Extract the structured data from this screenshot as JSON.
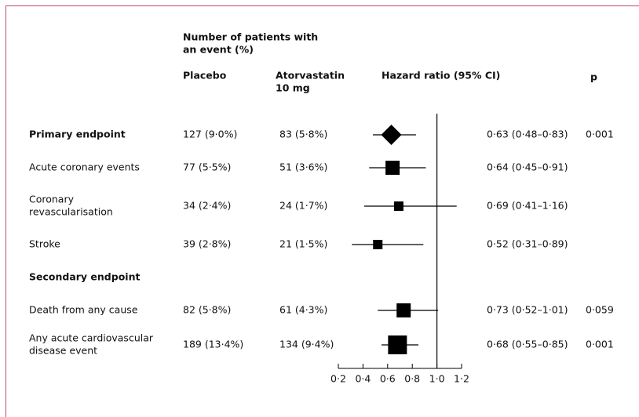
{
  "chart_data": {
    "type": "forest",
    "header": {
      "group": [
        "Number of patients with",
        "an event (%)"
      ],
      "placebo": "Placebo",
      "treatment": [
        "Atorvastatin",
        "10 mg"
      ],
      "hr": "Hazard ratio (95% CI)",
      "p": "p"
    },
    "rows": [
      {
        "label": [
          "Primary endpoint"
        ],
        "bold": true,
        "marker": "diamond",
        "placebo": "127 (9·0%)",
        "treatment": "83 (5·8%)",
        "hr": 0.63,
        "lo": 0.48,
        "hi": 0.83,
        "hr_label": "0·63 (0·48–0·83)",
        "p": "0·001"
      },
      {
        "label": [
          "Acute coronary events"
        ],
        "marker": "square",
        "placebo": "77 (5·5%)",
        "treatment": "51 (3·6%)",
        "hr": 0.64,
        "lo": 0.45,
        "hi": 0.91,
        "hr_label": "0·64 (0·45–0·91)"
      },
      {
        "label": [
          "Coronary",
          "revascularisation"
        ],
        "marker": "square",
        "placebo": "34 (2·4%)",
        "treatment": "24 (1·7%)",
        "hr": 0.69,
        "lo": 0.41,
        "hi": 1.16,
        "hr_label": "0·69 (0·41–1·16)"
      },
      {
        "label": [
          "Stroke"
        ],
        "marker": "square",
        "placebo": "39 (2·8%)",
        "treatment": "21 (1·5%)",
        "hr": 0.52,
        "lo": 0.31,
        "hi": 0.89,
        "hr_label": "0·52 (0·31–0·89)"
      },
      {
        "label": [
          "Secondary endpoint"
        ],
        "bold": true
      },
      {
        "label": [
          "Death from any cause"
        ],
        "marker": "square",
        "placebo": "82 (5·8%)",
        "treatment": "61 (4·3%)",
        "hr": 0.73,
        "lo": 0.52,
        "hi": 1.01,
        "hr_label": "0·73 (0·52–1·01)",
        "p": "0·059"
      },
      {
        "label": [
          "Any acute cardiovascular",
          "disease event"
        ],
        "marker": "square",
        "placebo": "189 (13·4%)",
        "treatment": "134 (9·4%)",
        "hr": 0.68,
        "lo": 0.55,
        "hi": 0.85,
        "hr_label": "0·68 (0·55–0·85)",
        "p": "0·001"
      }
    ],
    "xlim": [
      0.2,
      1.2
    ],
    "xticks": [
      {
        "value": 0.2,
        "label": "0·2"
      },
      {
        "value": 0.4,
        "label": "0·4"
      },
      {
        "value": 0.6,
        "label": "0·6"
      },
      {
        "value": 0.8,
        "label": "0·8"
      },
      {
        "value": 1.0,
        "label": "1·0"
      },
      {
        "value": 1.2,
        "label": "1·2"
      }
    ],
    "reference": 1.0,
    "color": "#000000"
  }
}
